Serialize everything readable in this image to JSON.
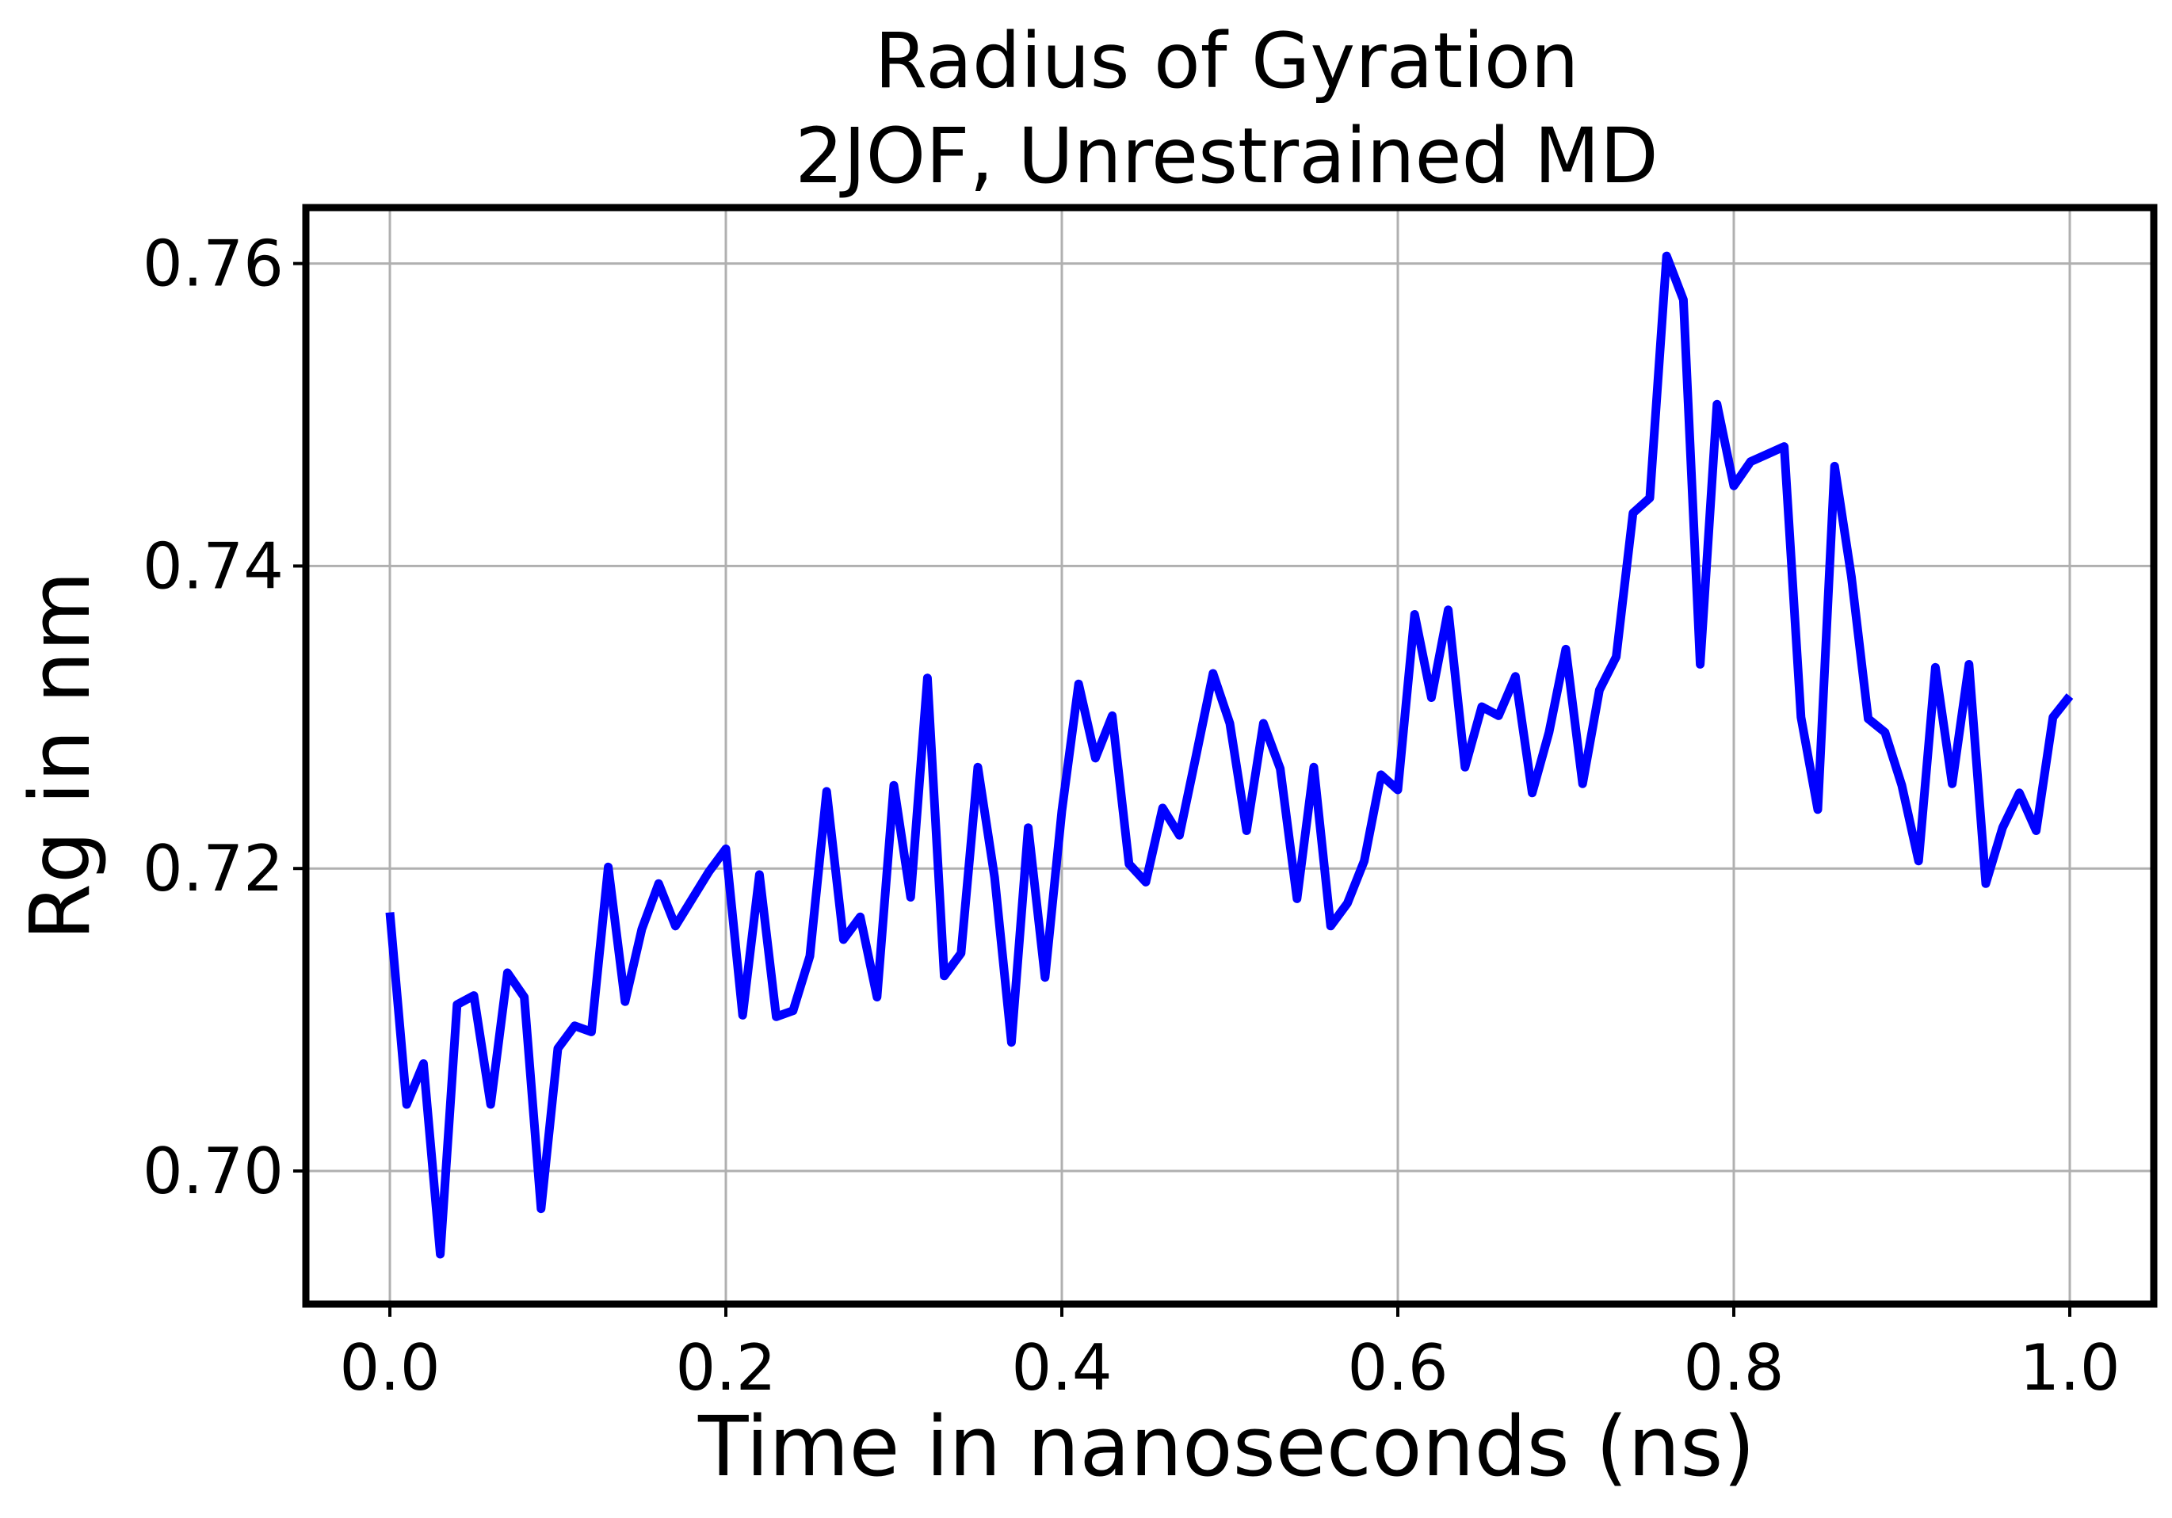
{
  "chart_data": {
    "type": "line",
    "title": "Radius of Gyration",
    "subtitle": "2JOF, Unrestrained MD",
    "xlabel": "Time in nanoseconds (ns)",
    "ylabel": "Rg in nm",
    "xlim": [
      -0.05,
      1.05
    ],
    "ylim": [
      0.6912,
      0.7637
    ],
    "xticks": [
      0.0,
      0.2,
      0.4,
      0.6,
      0.8,
      1.0
    ],
    "xtick_labels": [
      "0.0",
      "0.2",
      "0.4",
      "0.6",
      "0.8",
      "1.0"
    ],
    "yticks": [
      0.7,
      0.72,
      0.74,
      0.76
    ],
    "ytick_labels": [
      "0.70",
      "0.72",
      "0.74",
      "0.76"
    ],
    "grid": true,
    "legend": "none",
    "line_color": "#0000ff",
    "series": [
      {
        "x": [
          0.0,
          0.01,
          0.02,
          0.03,
          0.04,
          0.05,
          0.06,
          0.07,
          0.08,
          0.09,
          0.1,
          0.11,
          0.12,
          0.13,
          0.14,
          0.15,
          0.16,
          0.17,
          0.18,
          0.19,
          0.2,
          0.21,
          0.22,
          0.23,
          0.24,
          0.25,
          0.26,
          0.27,
          0.28,
          0.29,
          0.3,
          0.31,
          0.32,
          0.33,
          0.34,
          0.35,
          0.36,
          0.37,
          0.38,
          0.39,
          0.4,
          0.41,
          0.42,
          0.43,
          0.44,
          0.45,
          0.46,
          0.47,
          0.48,
          0.49,
          0.5,
          0.51,
          0.52,
          0.53,
          0.54,
          0.55,
          0.56,
          0.57,
          0.58,
          0.59,
          0.6,
          0.61,
          0.62,
          0.63,
          0.64,
          0.65,
          0.66,
          0.67,
          0.68,
          0.69,
          0.7,
          0.71,
          0.72,
          0.73,
          0.74,
          0.75,
          0.76,
          0.77,
          0.78,
          0.79,
          0.8,
          0.81,
          0.82,
          0.83,
          0.84,
          0.85,
          0.86,
          0.87,
          0.88,
          0.89,
          0.9,
          0.91,
          0.92,
          0.93,
          0.94,
          0.95,
          0.96,
          0.97,
          0.98,
          0.99,
          1.0
        ],
        "y": [
          0.7171,
          0.7044,
          0.7071,
          0.6945,
          0.711,
          0.7116,
          0.7044,
          0.7131,
          0.7115,
          0.6975,
          0.7081,
          0.7096,
          0.7092,
          0.7201,
          0.7112,
          0.716,
          0.719,
          0.7162,
          0.718,
          0.7198,
          0.7213,
          0.7103,
          0.7196,
          0.7102,
          0.7106,
          0.7142,
          0.7251,
          0.7153,
          0.7168,
          0.7115,
          0.7255,
          0.7181,
          0.7326,
          0.7129,
          0.7144,
          0.7267,
          0.7194,
          0.7085,
          0.7227,
          0.7128,
          0.7238,
          0.7322,
          0.7273,
          0.7301,
          0.7203,
          0.7191,
          0.724,
          0.7222,
          0.7275,
          0.7329,
          0.7296,
          0.7225,
          0.7296,
          0.7266,
          0.718,
          0.7267,
          0.7162,
          0.7177,
          0.7205,
          0.7262,
          0.7252,
          0.7368,
          0.7313,
          0.7371,
          0.7267,
          0.7307,
          0.7301,
          0.7327,
          0.725,
          0.729,
          0.7345,
          0.7256,
          0.7318,
          0.734,
          0.7435,
          0.7445,
          0.7605,
          0.7576,
          0.7335,
          0.7507,
          0.7453,
          0.7469,
          0.7474,
          0.7479,
          0.73,
          0.7239,
          0.7466,
          0.7393,
          0.7299,
          0.729,
          0.7255,
          0.7205,
          0.7333,
          0.7256,
          0.7335,
          0.719,
          0.7227,
          0.725,
          0.7225,
          0.73,
          0.7314
        ]
      }
    ]
  }
}
